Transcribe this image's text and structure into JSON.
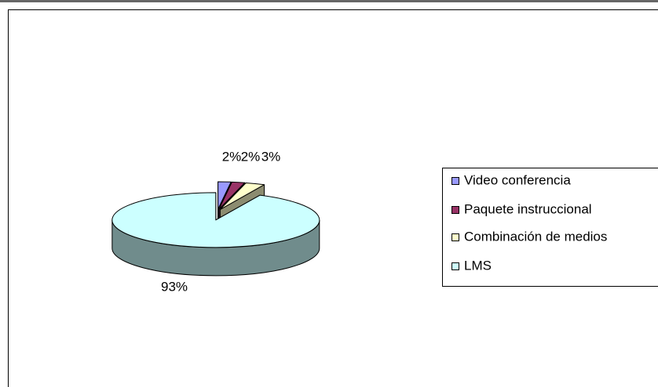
{
  "chart_data": {
    "type": "pie",
    "categories": [
      "Video conferencia",
      "Paquete instruccional",
      "Combinación de medios",
      "LMS"
    ],
    "values": [
      2,
      2,
      3,
      93
    ],
    "value_labels": [
      "2%",
      "2%",
      "3%",
      "93%"
    ],
    "colors": [
      "#9999ff",
      "#993366",
      "#ffffcc",
      "#ccffff"
    ],
    "legend": "right"
  }
}
